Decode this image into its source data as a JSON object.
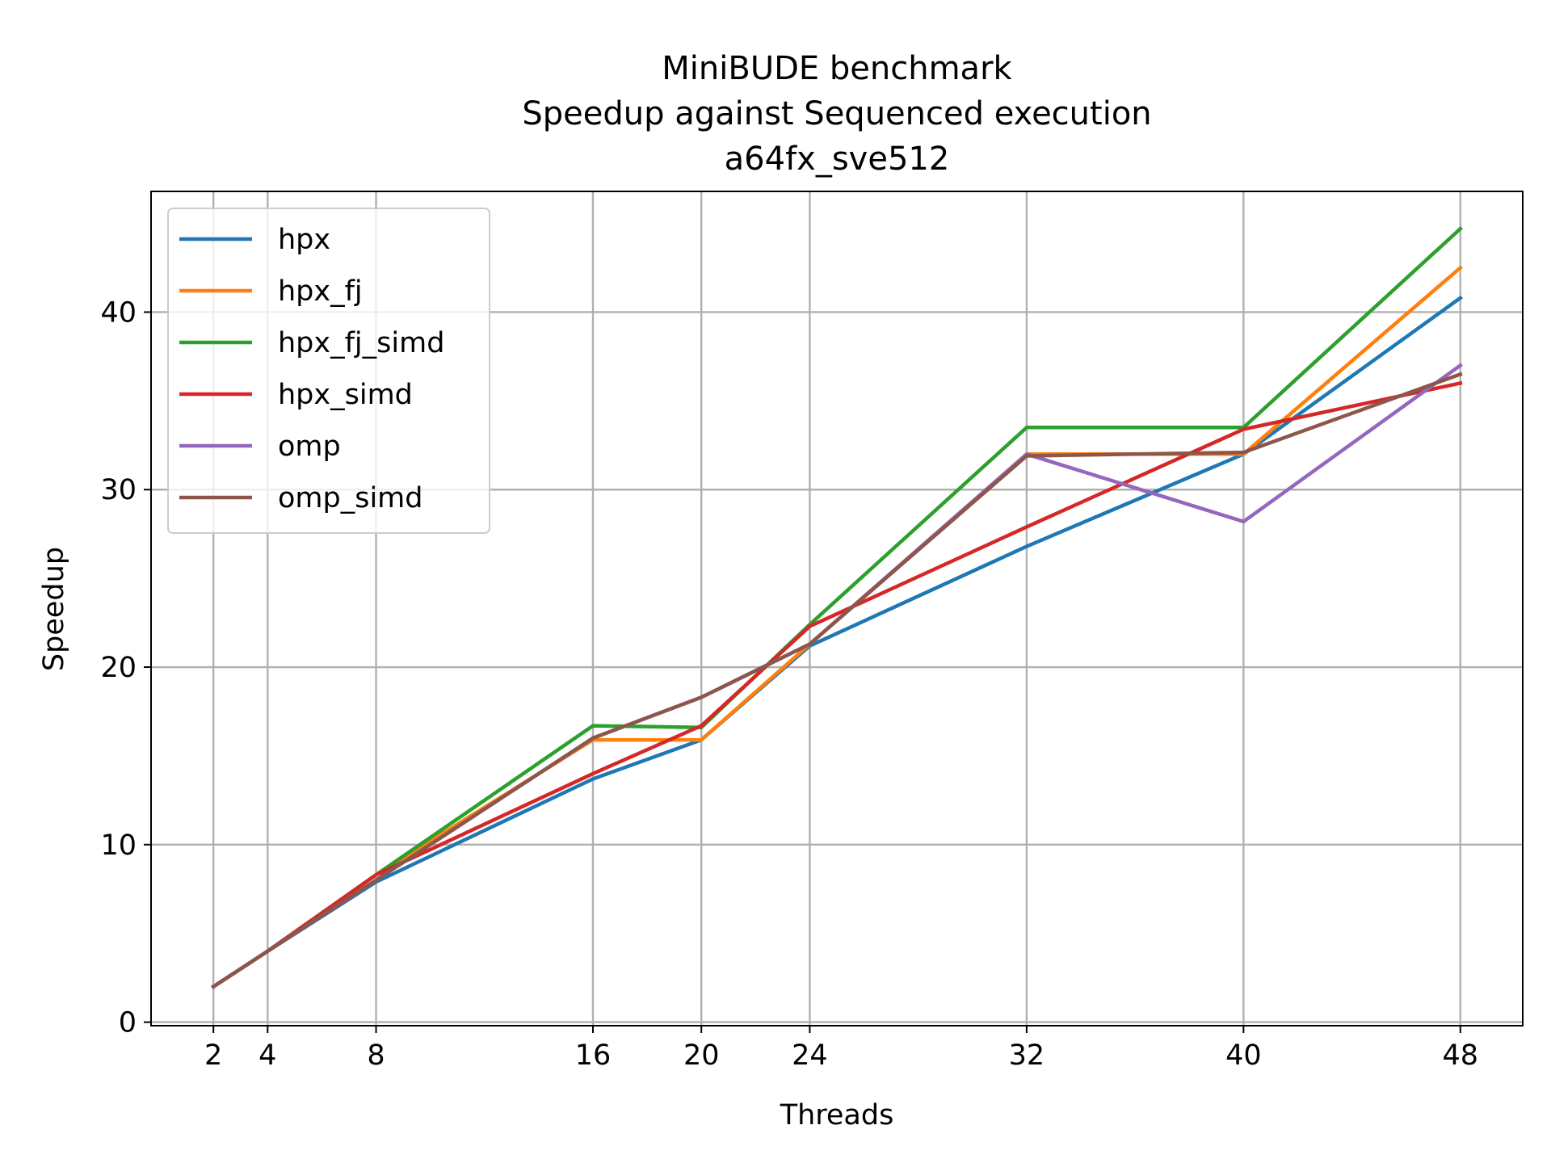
{
  "chart_data": {
    "type": "line",
    "title": [
      "MiniBUDE benchmark",
      "Speedup against Sequenced execution",
      "a64fx_sve512"
    ],
    "xlabel": "Threads",
    "ylabel": "Speedup",
    "x": [
      2,
      4,
      8,
      16,
      20,
      24,
      32,
      40,
      48
    ],
    "xticks": [
      2,
      4,
      8,
      16,
      20,
      24,
      32,
      40,
      48
    ],
    "yticks": [
      0,
      10,
      20,
      30,
      40
    ],
    "xlim": [
      -0.3,
      50.3
    ],
    "ylim": [
      -0.2,
      46.8
    ],
    "grid": true,
    "legend_position": "upper-left",
    "series": [
      {
        "name": "hpx",
        "color": "#1f77b4",
        "values": [
          2.0,
          4.0,
          7.9,
          13.7,
          15.9,
          21.2,
          26.8,
          32.0,
          40.8
        ]
      },
      {
        "name": "hpx_fj",
        "color": "#ff7f0e",
        "values": [
          2.0,
          4.0,
          8.3,
          15.9,
          15.9,
          21.3,
          32.0,
          32.0,
          42.5
        ]
      },
      {
        "name": "hpx_fj_simd",
        "color": "#2ca02c",
        "values": [
          2.0,
          4.0,
          8.3,
          16.7,
          16.6,
          22.4,
          33.5,
          33.5,
          44.7
        ]
      },
      {
        "name": "hpx_simd",
        "color": "#d62728",
        "values": [
          2.0,
          4.0,
          8.3,
          14.0,
          16.7,
          22.3,
          27.9,
          33.4,
          36.0
        ]
      },
      {
        "name": "omp",
        "color": "#9467bd",
        "values": [
          2.0,
          4.0,
          8.0,
          16.0,
          18.3,
          21.3,
          32.0,
          28.2,
          37.0
        ]
      },
      {
        "name": "omp_simd",
        "color": "#8c564b",
        "values": [
          2.0,
          4.0,
          8.0,
          16.0,
          18.3,
          21.3,
          31.9,
          32.1,
          36.5
        ]
      }
    ]
  }
}
